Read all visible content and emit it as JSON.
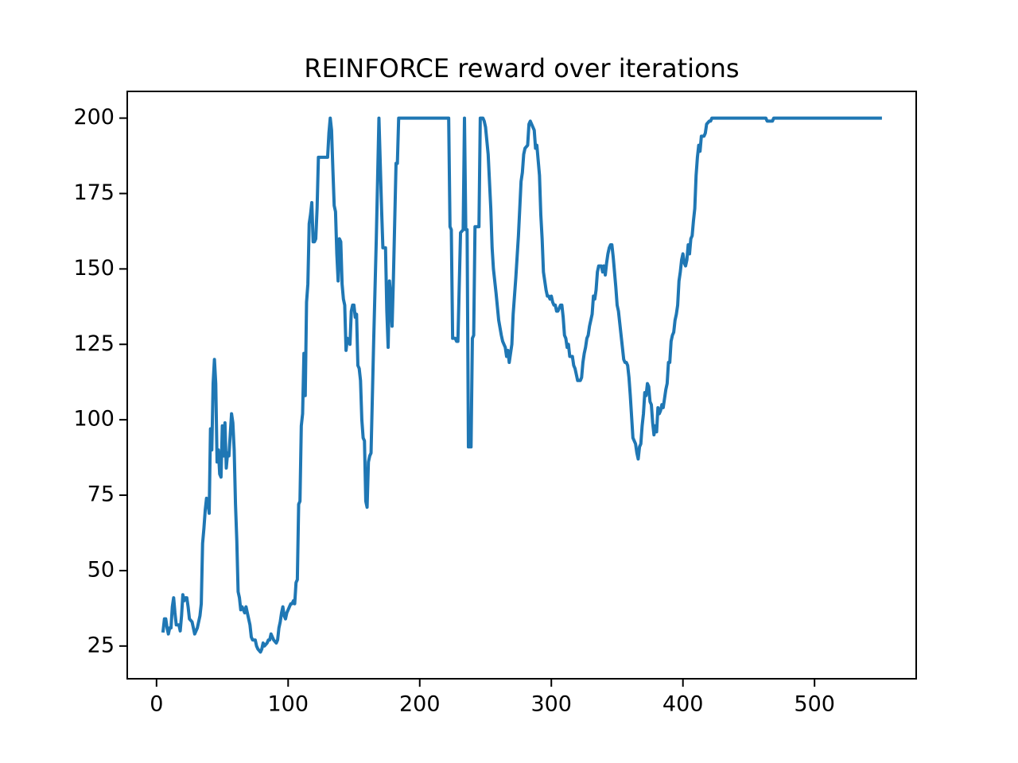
{
  "chart_data": {
    "type": "line",
    "title": "REINFORCE reward over iterations",
    "x": [
      5,
      6,
      7,
      8,
      9,
      10,
      11,
      12,
      13,
      14,
      15,
      17,
      18,
      19,
      20,
      21,
      22,
      23,
      24,
      25,
      27,
      29,
      31,
      33,
      34,
      35,
      36,
      37,
      38,
      39,
      40,
      41,
      42,
      43,
      44,
      45,
      46,
      47,
      48,
      49,
      50,
      51,
      52,
      53,
      54,
      55,
      56,
      57,
      58,
      59,
      60,
      61,
      62,
      63,
      64,
      65,
      66,
      67,
      68,
      69,
      70,
      71,
      72,
      73,
      75,
      76,
      77,
      79,
      80,
      81,
      82,
      84,
      85,
      86,
      87,
      88,
      89,
      91,
      92,
      93,
      94,
      95,
      96,
      97,
      98,
      99,
      100,
      101,
      102,
      103,
      104,
      105,
      106,
      107,
      108,
      109,
      110,
      111,
      112,
      113,
      114,
      115,
      116,
      117,
      118,
      119,
      120,
      121,
      122,
      123,
      124,
      127,
      130,
      131,
      132,
      133,
      134,
      135,
      136,
      137,
      138,
      139,
      140,
      141,
      142,
      143,
      144,
      145,
      146,
      147,
      148,
      149,
      150,
      151,
      152,
      153,
      154,
      155,
      156,
      157,
      158,
      159,
      160,
      161,
      162,
      163,
      165,
      167,
      169,
      170,
      171,
      172,
      174,
      175,
      176,
      177,
      178,
      179,
      180,
      182,
      183,
      184,
      186,
      200,
      210,
      222,
      223,
      224,
      225,
      227,
      228,
      229,
      231,
      233,
      234,
      235,
      236,
      237,
      239,
      240,
      241,
      242,
      245,
      246,
      248,
      249,
      250,
      252,
      254,
      255,
      256,
      258,
      260,
      262,
      263,
      265,
      266,
      267,
      268,
      269,
      270,
      271,
      273,
      275,
      276,
      277,
      278,
      279,
      280,
      282,
      283,
      284,
      285,
      287,
      288,
      289,
      290,
      291,
      292,
      293,
      294,
      295,
      296,
      297,
      298,
      299,
      300,
      301,
      302,
      303,
      304,
      305,
      306,
      307,
      308,
      309,
      310,
      311,
      312,
      313,
      314,
      316,
      317,
      318,
      319,
      320,
      322,
      323,
      324,
      325,
      326,
      327,
      328,
      329,
      330,
      331,
      332,
      333,
      334,
      335,
      336,
      338,
      339,
      340,
      341,
      342,
      343,
      344,
      345,
      346,
      347,
      348,
      349,
      350,
      351,
      352,
      353,
      354,
      355,
      356,
      357,
      358,
      359,
      360,
      361,
      362,
      363,
      364,
      365,
      366,
      367,
      368,
      369,
      370,
      371,
      372,
      373,
      374,
      375,
      376,
      377,
      378,
      379,
      380,
      381,
      382,
      383,
      384,
      385,
      386,
      387,
      388,
      389,
      390,
      391,
      392,
      393,
      394,
      395,
      396,
      397,
      398,
      399,
      400,
      401,
      402,
      403,
      404,
      405,
      406,
      407,
      408,
      409,
      410,
      411,
      412,
      413,
      414,
      415,
      416,
      417,
      418,
      420,
      421,
      422,
      424,
      463,
      464,
      465,
      468,
      469,
      550
    ],
    "series": [
      {
        "color": "#1f77b4",
        "values": [
          30,
          34,
          34,
          31,
          29,
          31,
          31,
          38,
          41,
          36,
          32,
          32,
          30,
          35,
          42,
          40,
          41,
          41,
          38,
          34,
          33,
          29,
          31,
          35,
          39,
          59,
          64,
          70,
          74,
          73,
          69,
          97,
          90,
          112,
          120,
          112,
          86,
          90,
          82,
          81,
          98,
          88,
          99,
          84,
          89,
          88,
          95,
          102,
          99,
          90,
          72,
          60,
          43,
          41,
          37,
          38,
          37,
          36,
          38,
          36,
          34,
          32,
          28,
          27,
          27,
          25,
          24,
          23,
          24,
          26,
          25,
          26,
          27,
          27,
          29,
          28,
          27,
          26,
          27,
          31,
          33,
          36,
          38,
          35,
          34,
          36,
          37,
          38,
          39,
          39,
          40,
          39,
          46,
          47,
          72,
          73,
          98,
          102,
          122,
          108,
          139,
          145,
          165,
          168,
          172,
          159,
          159,
          160,
          170,
          187,
          187,
          187,
          187,
          195,
          200,
          196,
          183,
          171,
          169,
          155,
          146,
          160,
          159,
          145,
          140,
          138,
          123,
          127,
          126,
          125,
          136,
          138,
          138,
          134,
          135,
          118,
          117,
          113,
          100,
          94,
          93,
          73,
          71,
          86,
          88,
          89,
          126,
          160,
          200,
          185,
          170,
          157,
          157,
          136,
          124,
          146,
          140,
          131,
          147,
          185,
          185,
          200,
          200,
          200,
          200,
          200,
          164,
          163,
          127,
          127,
          126,
          126,
          162,
          163,
          200,
          163,
          163,
          91,
          91,
          127,
          128,
          164,
          164,
          200,
          200,
          199,
          197,
          188,
          170,
          157,
          150,
          142,
          133,
          128,
          126,
          124,
          121,
          123,
          119,
          122,
          125,
          135,
          147,
          161,
          170,
          179,
          182,
          188,
          190,
          191,
          198,
          199,
          198,
          196,
          190,
          191,
          186,
          181,
          168,
          160,
          149,
          146,
          143,
          141,
          141,
          140,
          141,
          139,
          138,
          138,
          136,
          136,
          137,
          138,
          138,
          134,
          128,
          127,
          124,
          125,
          121,
          121,
          118,
          117,
          115,
          113,
          113,
          114,
          119,
          122,
          124,
          127,
          128,
          131,
          133,
          135,
          141,
          140,
          143,
          149,
          151,
          151,
          149,
          151,
          148,
          152,
          155,
          157,
          158,
          158,
          154,
          149,
          144,
          138,
          136,
          132,
          128,
          124,
          120,
          119,
          119,
          118,
          114,
          108,
          101,
          94,
          93,
          92,
          89,
          87,
          91,
          92,
          98,
          102,
          109,
          108,
          112,
          111,
          106,
          105,
          99,
          95,
          98,
          96,
          104,
          102,
          103,
          105,
          104,
          107,
          110,
          112,
          119,
          119,
          126,
          128,
          129,
          133,
          135,
          138,
          146,
          149,
          153,
          155,
          152,
          151,
          153,
          158,
          155,
          160,
          161,
          166,
          170,
          181,
          187,
          191,
          189,
          194,
          194,
          194,
          195,
          198,
          199,
          199,
          200,
          200,
          200,
          199,
          199,
          199,
          200,
          200
        ]
      }
    ],
    "xlim": [
      -22.25,
      577.25
    ],
    "xticks": [
      0,
      100,
      200,
      300,
      400,
      500
    ],
    "ylim": [
      14.15,
      208.85
    ],
    "yticks": [
      25,
      50,
      75,
      100,
      125,
      150,
      175,
      200
    ],
    "grid": false
  }
}
